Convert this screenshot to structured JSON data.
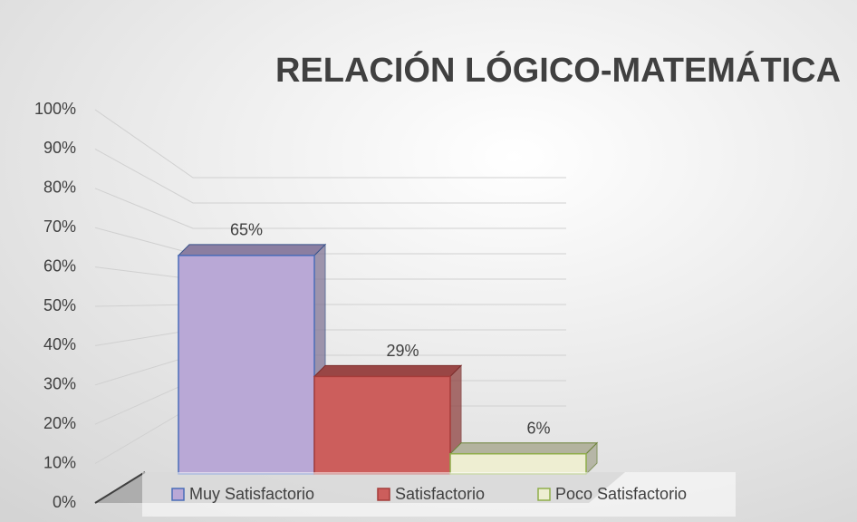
{
  "chart_data": {
    "type": "bar3d",
    "title": "RELACIÓN LÓGICO-MATEMÁTICA",
    "categories": [
      "Muy Satisfactorio",
      "Satisfactorio",
      "Poco Satisfactorio"
    ],
    "values": [
      65,
      29,
      6
    ],
    "value_labels": [
      "65%",
      "29%",
      "6%"
    ],
    "colors": [
      "#b9a8d6",
      "#cc5e5c",
      "#eeeed2"
    ],
    "border_colors": [
      "#4a6cb8",
      "#a53c3a",
      "#8fae4a"
    ],
    "ylim": [
      0,
      100
    ],
    "yticks": [
      {
        "value": 0,
        "label": "0%"
      },
      {
        "value": 10,
        "label": "10%"
      },
      {
        "value": 20,
        "label": "20%"
      },
      {
        "value": 30,
        "label": "30%"
      },
      {
        "value": 40,
        "label": "40%"
      },
      {
        "value": 50,
        "label": "50%"
      },
      {
        "value": 60,
        "label": "60%"
      },
      {
        "value": 70,
        "label": "70%"
      },
      {
        "value": 80,
        "label": "80%"
      },
      {
        "value": 90,
        "label": "90%"
      },
      {
        "value": 100,
        "label": "100%"
      }
    ],
    "grid": true,
    "legend": "bottom"
  }
}
